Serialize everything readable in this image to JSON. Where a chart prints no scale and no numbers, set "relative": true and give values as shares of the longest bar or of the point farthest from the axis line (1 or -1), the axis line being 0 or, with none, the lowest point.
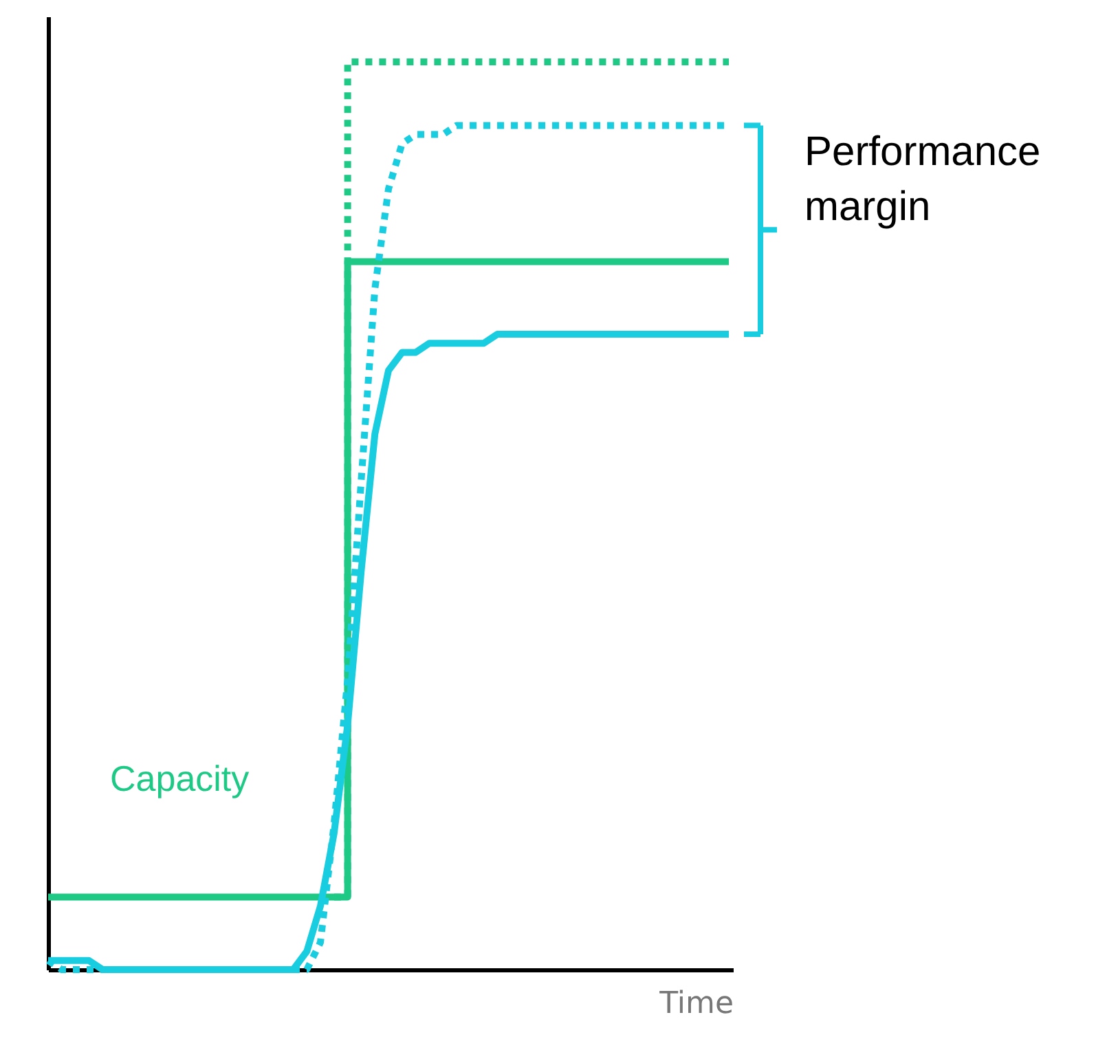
{
  "chart_data": {
    "type": "line",
    "relative": true,
    "xlabel": "Time",
    "grid": false,
    "marker": "none",
    "categories": [
      null,
      null,
      null,
      null,
      null,
      null,
      null,
      null,
      null,
      null,
      null,
      null,
      null,
      null,
      null,
      null,
      null,
      null,
      null,
      null,
      null,
      null,
      null,
      null,
      null,
      null,
      null,
      null,
      null,
      null,
      null,
      null,
      null,
      null,
      null,
      null,
      null,
      null,
      null,
      null,
      null,
      null,
      null,
      null,
      null,
      null,
      null,
      null,
      null,
      null,
      null
    ],
    "annotations": [
      "Performance margin"
    ],
    "series": [
      {
        "name": "Capacity",
        "type": "step",
        "color": "#1ec986",
        "line_style": "solid",
        "values": [
          0.08,
          0.08,
          0.08,
          0.08,
          0.08,
          0.08,
          0.08,
          0.08,
          0.08,
          0.08,
          0.08,
          0.08,
          0.08,
          0.08,
          0.08,
          0.08,
          0.08,
          0.08,
          0.08,
          0.08,
          0.08,
          0.08,
          0.78,
          0.78,
          0.78,
          0.78,
          0.78,
          0.78,
          0.78,
          0.78,
          0.78,
          0.78,
          0.78,
          0.78,
          0.78,
          0.78,
          0.78,
          0.78,
          0.78,
          0.78,
          0.78,
          0.78,
          0.78,
          0.78,
          0.78,
          0.78,
          0.78,
          0.78,
          0.78,
          0.78,
          0.78
        ]
      },
      {
        "type": "step",
        "color": "#1ec986",
        "line_style": "dotted",
        "values": [
          null,
          null,
          null,
          null,
          null,
          null,
          null,
          null,
          null,
          null,
          null,
          null,
          null,
          null,
          null,
          null,
          null,
          null,
          null,
          null,
          null,
          0.08,
          1,
          1,
          1,
          1,
          1,
          1,
          1,
          1,
          1,
          1,
          1,
          1,
          1,
          1,
          1,
          1,
          1,
          1,
          1,
          1,
          1,
          1,
          1,
          1,
          1,
          1,
          1,
          1,
          1
        ]
      },
      {
        "color": "#19cde0",
        "line_style": "dotted",
        "values": [
          0.01,
          0,
          0,
          0,
          0,
          0,
          0,
          0,
          0,
          0,
          0,
          0,
          0,
          0,
          0,
          0,
          0,
          0,
          0,
          0,
          0.03,
          0.16,
          0.32,
          0.54,
          0.75,
          0.86,
          0.91,
          0.92,
          0.92,
          0.92,
          0.93,
          0.93,
          0.93,
          0.93,
          0.93,
          0.93,
          0.93,
          0.93,
          0.93,
          0.93,
          0.93,
          0.93,
          0.93,
          0.93,
          0.93,
          0.93,
          0.93,
          0.93,
          0.93,
          0.93,
          0.93
        ]
      },
      {
        "color": "#19cde0",
        "line_style": "solid",
        "values": [
          0.01,
          0.01,
          0.01,
          0.01,
          0,
          0,
          0,
          0,
          0,
          0,
          0,
          0,
          0,
          0,
          0,
          0,
          0,
          0,
          0,
          0.02,
          0.07,
          0.15,
          0.27,
          0.44,
          0.59,
          0.66,
          0.68,
          0.68,
          0.69,
          0.69,
          0.69,
          0.69,
          0.69,
          0.7,
          0.7,
          0.7,
          0.7,
          0.7,
          0.7,
          0.7,
          0.7,
          0.7,
          0.7,
          0.7,
          0.7,
          0.7,
          0.7,
          0.7,
          0.7,
          0.7,
          0.7
        ]
      }
    ]
  }
}
